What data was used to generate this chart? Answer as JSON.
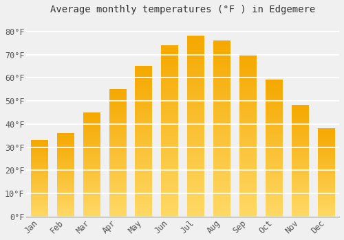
{
  "title": "Average monthly temperatures (°F ) in Edgemere",
  "months": [
    "Jan",
    "Feb",
    "Mar",
    "Apr",
    "May",
    "Jun",
    "Jul",
    "Aug",
    "Sep",
    "Oct",
    "Nov",
    "Dec"
  ],
  "values": [
    33,
    36,
    45,
    55,
    65,
    74,
    78,
    76,
    70,
    59,
    48,
    38
  ],
  "bar_color_top": "#F5A800",
  "bar_color_bottom": "#FFD966",
  "ylim": [
    0,
    85
  ],
  "yticks": [
    0,
    10,
    20,
    30,
    40,
    50,
    60,
    70,
    80
  ],
  "ytick_labels": [
    "0°F",
    "10°F",
    "20°F",
    "30°F",
    "40°F",
    "50°F",
    "60°F",
    "70°F",
    "80°F"
  ],
  "background_color": "#f0f0f0",
  "grid_color": "#ffffff",
  "title_fontsize": 10,
  "tick_fontsize": 8.5,
  "font_family": "monospace"
}
